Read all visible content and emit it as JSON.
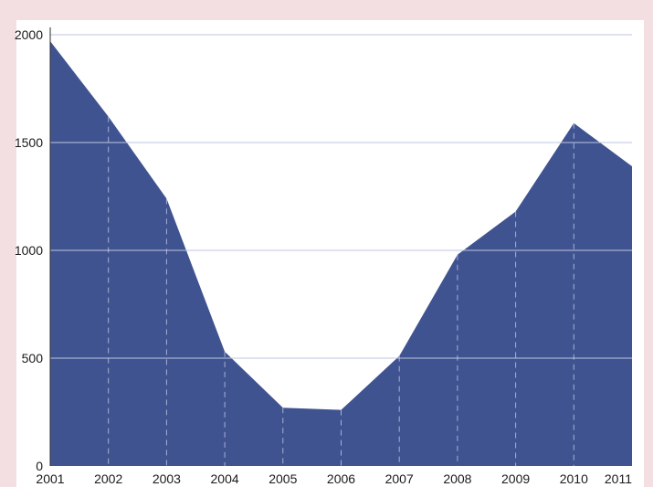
{
  "chart_data": {
    "type": "area",
    "title": "",
    "xlabel": "",
    "ylabel": "",
    "x": [
      "2001",
      "2002",
      "2003",
      "2004",
      "2005",
      "2006",
      "2007",
      "2008",
      "2009",
      "2010",
      "2011"
    ],
    "series": [
      {
        "values": [
          1970,
          1620,
          1240,
          530,
          270,
          260,
          510,
          980,
          1180,
          1590,
          1390
        ]
      }
    ],
    "ylim": [
      0,
      2000
    ],
    "yticks": [
      0,
      500,
      1000,
      1500,
      2000
    ],
    "grid": true,
    "colors": {
      "fill": "#3f5391",
      "plot_background": "#ffffff",
      "page_background": "#f3dfe1",
      "grid": "#a9b1d6"
    }
  }
}
